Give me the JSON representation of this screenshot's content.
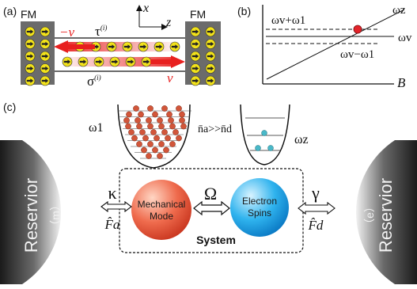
{
  "panel_a": {
    "label": "(a)",
    "lead_left": "FM",
    "lead_right": "FM",
    "axis_x": "x",
    "axis_z": "z",
    "tau": "τ",
    "tau_sup": "(i)",
    "sigma": "σ",
    "sigma_sup": "(i)",
    "velocity_left": "−v",
    "velocity_right": "v",
    "colors": {
      "lead": "#6b6b6b",
      "spin": "#f2e21a",
      "arrow": "#e8201f",
      "electron": "#f4a58a"
    }
  },
  "panel_b": {
    "label": "(b)",
    "omega_z": "ωz",
    "omega_v": "ωv",
    "upper_line": "ωv+ω1",
    "lower_line": "ωv−ω1",
    "x_axis": "B",
    "colors": {
      "point": "#e3242b"
    }
  },
  "panel_c": {
    "label": "(c)",
    "reservoir_left": "Reservior",
    "reservoir_left_sub": "（m）",
    "reservoir_right": "Reservior",
    "reservoir_right_sub": "（e）",
    "mechanical_mode": [
      "Mechanical",
      "Mode"
    ],
    "electron_spins": [
      "Electron",
      "Spins"
    ],
    "system": "System",
    "kappa": "κ",
    "gamma": "γ",
    "omega_coupling": "Ω",
    "force_a": "F̂a",
    "force_d": "F̂d",
    "omega_1": "ω1",
    "omega_z": "ωz",
    "occupation": "n̄a>>n̄d",
    "colors": {
      "mechanical": "#e8563a",
      "spins": "#1aa6e6",
      "phonon": "#d2563a",
      "spin_level": "#49b8c8"
    }
  }
}
